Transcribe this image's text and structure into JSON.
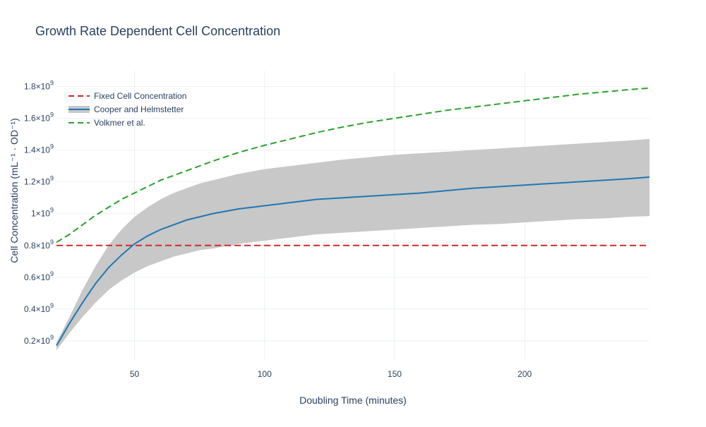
{
  "chart_data": {
    "type": "line",
    "title": "Growth Rate Dependent Cell Concentration",
    "xlabel": "Doubling Time (minutes)",
    "ylabel": "Cell Concentration (mL⁻¹ · OD⁻¹)",
    "xlim": [
      20,
      248
    ],
    "ylim": [
      80000000.0,
      1900000000.0
    ],
    "grid": true,
    "legend_position": "top-left",
    "x_ticks": [
      {
        "value": 50,
        "label": "50"
      },
      {
        "value": 100,
        "label": "100"
      },
      {
        "value": 150,
        "label": "150"
      },
      {
        "value": 200,
        "label": "200"
      }
    ],
    "y_ticks": [
      {
        "value": 200000000.0,
        "mant": "0.2",
        "base": "×10",
        "exp": "9"
      },
      {
        "value": 400000000.0,
        "mant": "0.4",
        "base": "×10",
        "exp": "9"
      },
      {
        "value": 600000000.0,
        "mant": "0.6",
        "base": "×10",
        "exp": "9"
      },
      {
        "value": 800000000.0,
        "mant": "0.8",
        "base": "×10",
        "exp": "9"
      },
      {
        "value": 1000000000.0,
        "mant": "1",
        "base": "×10",
        "exp": "9"
      },
      {
        "value": 1200000000.0,
        "mant": "1.2",
        "base": "×10",
        "exp": "9"
      },
      {
        "value": 1400000000.0,
        "mant": "1.4",
        "base": "×10",
        "exp": "9"
      },
      {
        "value": 1600000000.0,
        "mant": "1.6",
        "base": "×10",
        "exp": "9"
      },
      {
        "value": 1800000000.0,
        "mant": "1.8",
        "base": "×10",
        "exp": "9"
      }
    ],
    "x": [
      20,
      25,
      30,
      35,
      40,
      45,
      50,
      55,
      60,
      65,
      70,
      75,
      80,
      90,
      100,
      110,
      120,
      130,
      140,
      150,
      160,
      170,
      180,
      190,
      200,
      210,
      220,
      230,
      240,
      248
    ],
    "series": [
      {
        "name": "Fixed Cell Concentration",
        "style": "dashed",
        "color": "#d62728",
        "values": [
          800000000.0,
          800000000.0,
          800000000.0,
          800000000.0,
          800000000.0,
          800000000.0,
          800000000.0,
          800000000.0,
          800000000.0,
          800000000.0,
          800000000.0,
          800000000.0,
          800000000.0,
          800000000.0,
          800000000.0,
          800000000.0,
          800000000.0,
          800000000.0,
          800000000.0,
          800000000.0,
          800000000.0,
          800000000.0,
          800000000.0,
          800000000.0,
          800000000.0,
          800000000.0,
          800000000.0,
          800000000.0,
          800000000.0,
          800000000.0
        ]
      },
      {
        "name": "Cooper and Helmstetter",
        "style": "solid",
        "color": "#1f77b4",
        "band_color": "#c8c8c8",
        "values": [
          170000000.0,
          310000000.0,
          440000000.0,
          560000000.0,
          660000000.0,
          740000000.0,
          810000000.0,
          860000000.0,
          900000000.0,
          930000000.0,
          960000000.0,
          980000000.0,
          1000000000.0,
          1030000000.0,
          1050000000.0,
          1070000000.0,
          1090000000.0,
          1100000000.0,
          1110000000.0,
          1120000000.0,
          1130000000.0,
          1145000000.0,
          1160000000.0,
          1170000000.0,
          1180000000.0,
          1190000000.0,
          1200000000.0,
          1210000000.0,
          1220000000.0,
          1230000000.0
        ],
        "lower": [
          140000000.0,
          250000000.0,
          350000000.0,
          440000000.0,
          520000000.0,
          580000000.0,
          630000000.0,
          670000000.0,
          700000000.0,
          730000000.0,
          750000000.0,
          770000000.0,
          780000000.0,
          810000000.0,
          830000000.0,
          850000000.0,
          870000000.0,
          880000000.0,
          890000000.0,
          900000000.0,
          910000000.0,
          920000000.0,
          930000000.0,
          935000000.0,
          945000000.0,
          955000000.0,
          965000000.0,
          970000000.0,
          980000000.0,
          985000000.0
        ],
        "upper": [
          190000000.0,
          350000000.0,
          520000000.0,
          670000000.0,
          800000000.0,
          900000000.0,
          980000000.0,
          1040000000.0,
          1090000000.0,
          1130000000.0,
          1160000000.0,
          1190000000.0,
          1210000000.0,
          1250000000.0,
          1280000000.0,
          1300000000.0,
          1320000000.0,
          1340000000.0,
          1355000000.0,
          1370000000.0,
          1380000000.0,
          1390000000.0,
          1400000000.0,
          1410000000.0,
          1420000000.0,
          1430000000.0,
          1440000000.0,
          1450000000.0,
          1460000000.0,
          1470000000.0
        ]
      },
      {
        "name": "Volkmer et al.",
        "style": "dashed",
        "color": "#2ca02c",
        "values": [
          820000000.0,
          870000000.0,
          930000000.0,
          990000000.0,
          1040000000.0,
          1090000000.0,
          1130000000.0,
          1170000000.0,
          1210000000.0,
          1240000000.0,
          1270000000.0,
          1300000000.0,
          1330000000.0,
          1385000000.0,
          1430000000.0,
          1470000000.0,
          1510000000.0,
          1545000000.0,
          1575000000.0,
          1600000000.0,
          1625000000.0,
          1650000000.0,
          1670000000.0,
          1690000000.0,
          1710000000.0,
          1730000000.0,
          1750000000.0,
          1765000000.0,
          1780000000.0,
          1790000000.0
        ]
      }
    ]
  }
}
